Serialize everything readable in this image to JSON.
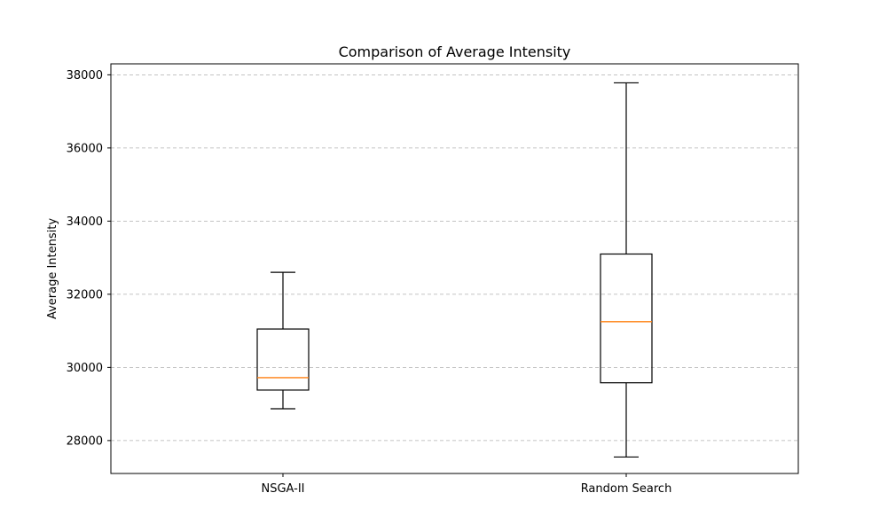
{
  "chart_data": {
    "type": "boxplot",
    "title": "Comparison of Average Intensity",
    "xlabel": "",
    "ylabel": "Average Intensity",
    "ylim": [
      27100,
      38300
    ],
    "yticks": [
      28000,
      30000,
      32000,
      34000,
      36000,
      38000
    ],
    "grid": "y-dashed",
    "categories": [
      "NSGA-II",
      "Random Search"
    ],
    "boxes": [
      {
        "whisker_low": 28870,
        "q1": 29380,
        "median": 29720,
        "q3": 31050,
        "whisker_high": 32600
      },
      {
        "whisker_low": 27550,
        "q1": 29580,
        "median": 31250,
        "q3": 33100,
        "whisker_high": 37780
      }
    ],
    "colors": {
      "box": "#000000",
      "median": "#ff7f0e",
      "grid": "#b0b0b0"
    }
  }
}
